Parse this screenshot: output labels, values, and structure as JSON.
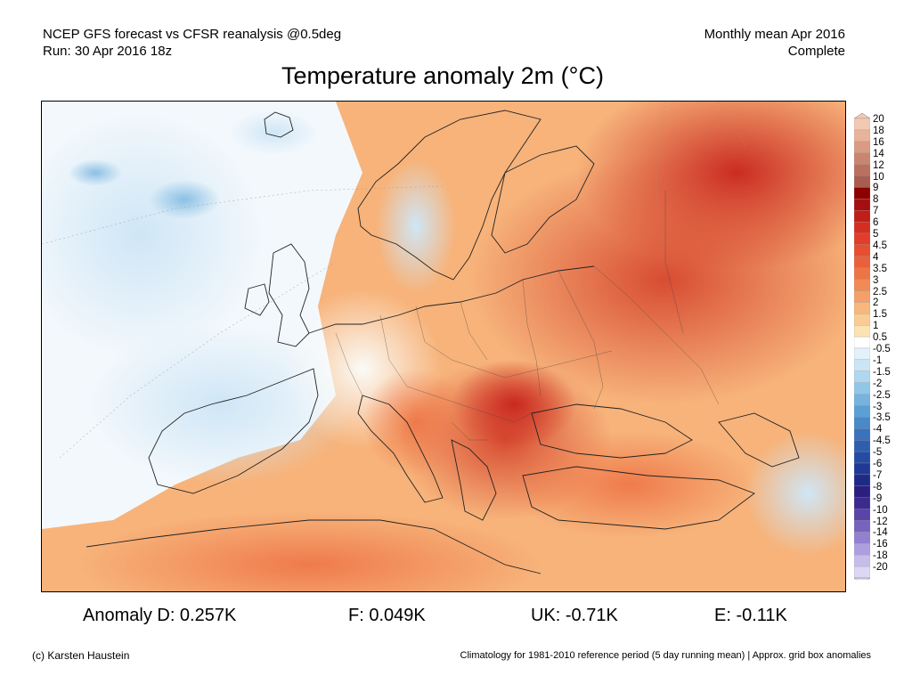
{
  "header": {
    "model_line": "NCEP GFS forecast vs CFSR reanalysis @0.5deg",
    "run_line": "Run: 30 Apr 2016 18z",
    "period_line": "Monthly mean Apr 2016",
    "status_line": "Complete"
  },
  "title": "Temperature anomaly 2m (°C)",
  "colorbar": {
    "levels": [
      "20",
      "18",
      "16",
      "14",
      "12",
      "10",
      "9",
      "8",
      "7",
      "6",
      "5",
      "4.5",
      "4",
      "3.5",
      "3",
      "2.5",
      "2",
      "1.5",
      "1",
      "0.5",
      "-0.5",
      "-1",
      "-1.5",
      "-2",
      "-2.5",
      "-3",
      "-3.5",
      "-4",
      "-4.5",
      "-5",
      "-6",
      "-7",
      "-8",
      "-9",
      "-10",
      "-12",
      "-14",
      "-16",
      "-18",
      "-20"
    ],
    "colors": [
      "#f2c9b3",
      "#e8b39a",
      "#d99b82",
      "#c98570",
      "#b9705f",
      "#a85d50",
      "#8c0000",
      "#a50f0f",
      "#c01e1a",
      "#d42e22",
      "#e03d2a",
      "#e54e31",
      "#ea603a",
      "#ee7446",
      "#f18a55",
      "#f4a068",
      "#f7b77d",
      "#f9cc93",
      "#fbe3b4",
      "#ffffff",
      "#e3f1fb",
      "#cbe5f6",
      "#b0d7f0",
      "#92c6e8",
      "#76b4df",
      "#5c9fd4",
      "#4a89c8",
      "#3a73bb",
      "#2e5eae",
      "#264ba2",
      "#1f3995",
      "#1e2a86",
      "#2a1f7e",
      "#3d2a8f",
      "#5a44a8",
      "#7762be",
      "#9380d0",
      "#ad9fdf",
      "#c7bdeb",
      "#ddd6f4"
    ]
  },
  "stats": {
    "anomaly_d": "Anomaly D: 0.257K",
    "f": "F: 0.049K",
    "uk": "UK: -0.71K",
    "e": "E: -0.11K"
  },
  "footer": {
    "credit": "(c) Karsten Haustein",
    "note": "Climatology for 1981-2010 reference period (5 day running mean) | Approx. grid box anomalies"
  }
}
